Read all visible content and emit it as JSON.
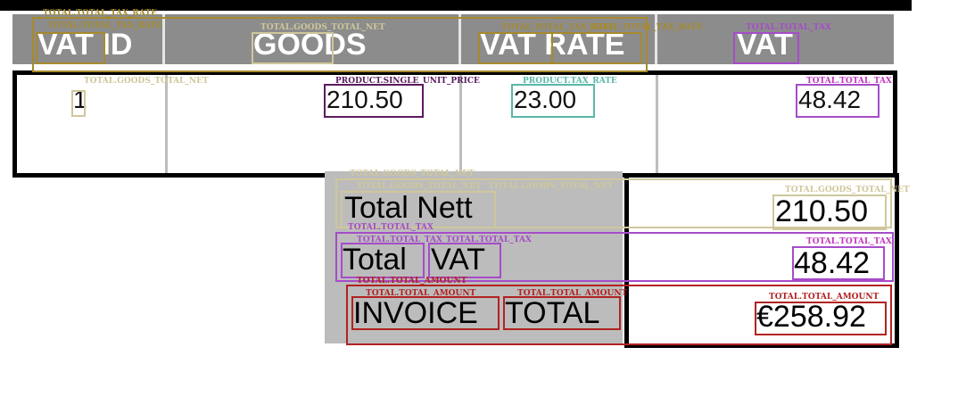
{
  "header": {
    "vat_id": "VAT ID",
    "goods": "GOODS",
    "vat_rate": "VAT RATE",
    "vat": "VAT"
  },
  "row": {
    "vat_id": "1",
    "goods": "210.50",
    "vat_rate": "23.00",
    "vat": "48.42"
  },
  "summary": {
    "total_nett_label": "Total Nett",
    "total_nett_value": "210.50",
    "total_vat_label_1": "Total",
    "total_vat_label_2": "VAT",
    "total_vat_value": "48.42",
    "invoice_total_label_1": "INVOICE",
    "invoice_total_label_2": "TOTAL",
    "invoice_total_value": "€258.92"
  },
  "tags": {
    "total_tax_rate": "TOTAL.TOTAL_TAX_RATE",
    "goods_total_net": "TOTAL.GOODS_TOTAL_NET",
    "total_tax": "TOTAL.TOTAL_TAX",
    "product_single_unit_price": "PRODUCT.SINGLE_UNIT_PRICE",
    "product_tax_rate": "PRODUCT.TAX_RATE",
    "total_amount": "TOTAL.TOTAL_AMOUNT",
    "goods_total_net_merged": "TOTAL.GOODS_TOTAL_NET",
    "total_tax_merged": "TOTAL.TOTAL_TAX"
  },
  "colors": {
    "header_bg": "#8c8c8c",
    "summary_bg": "#bcbcbc",
    "olive": "#a68a2e",
    "beige": "#cfc79b",
    "purple": "#a64cc9",
    "dark_purple": "#5b1a5e",
    "teal": "#59b8a8",
    "red": "#b22222"
  }
}
